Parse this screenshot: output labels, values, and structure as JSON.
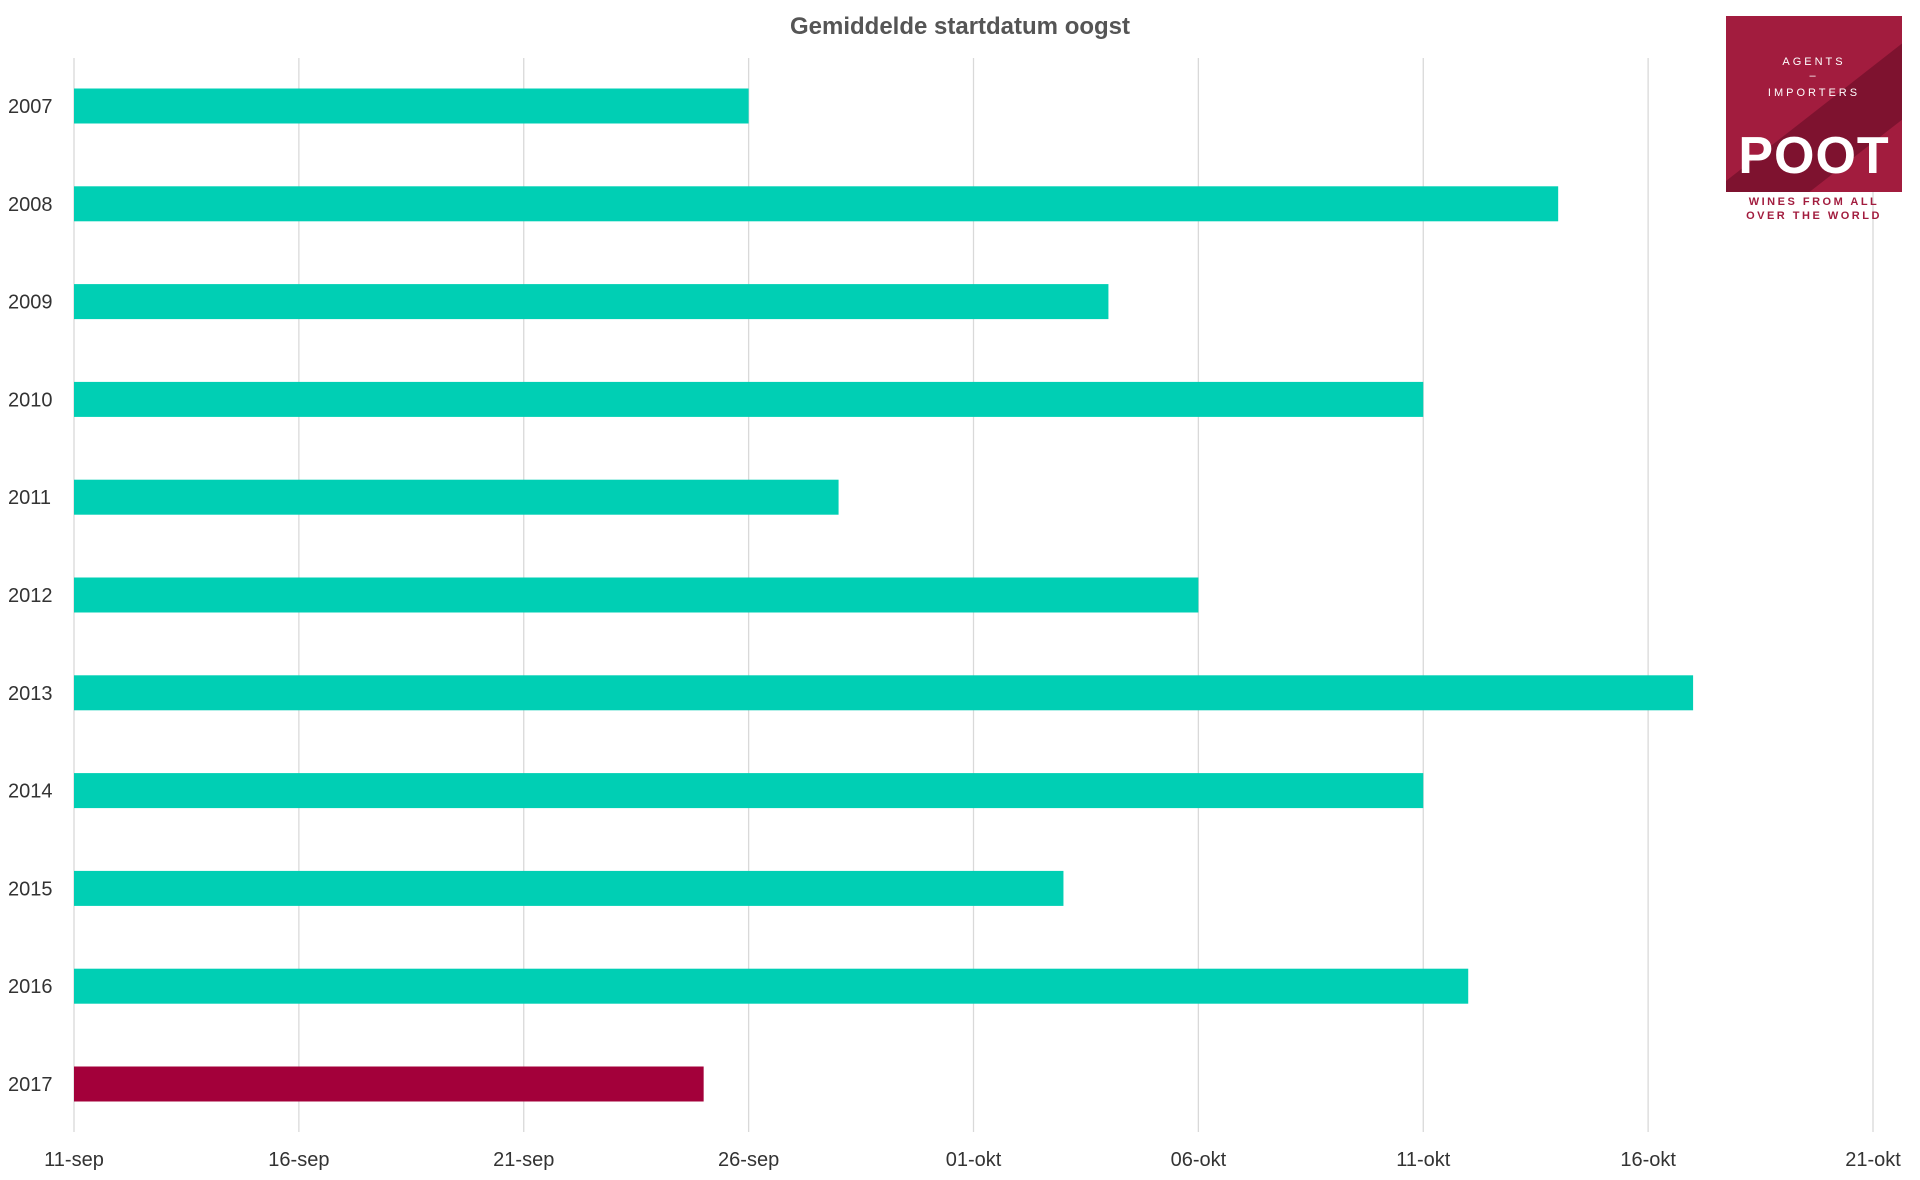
{
  "chart_data": {
    "type": "bar",
    "orientation": "horizontal",
    "title": "Gemiddelde startdatum oogst",
    "xlabel": "",
    "ylabel": "",
    "categories": [
      "2007",
      "2008",
      "2009",
      "2010",
      "2011",
      "2012",
      "2013",
      "2014",
      "2015",
      "2016",
      "2017"
    ],
    "values": [
      "26-sep",
      "14-okt",
      "04-okt",
      "11-okt",
      "28-sep",
      "06-okt",
      "17-okt",
      "11-okt",
      "03-okt",
      "12-okt",
      "25-sep"
    ],
    "x_ticks": [
      "11-sep",
      "16-sep",
      "21-sep",
      "26-sep",
      "01-okt",
      "06-okt",
      "11-okt",
      "16-okt",
      "21-okt"
    ],
    "xlim": [
      "11-sep",
      "21-okt"
    ],
    "grid": true,
    "legend": "none",
    "colors": {
      "default": "#00cfb4",
      "highlight": "#a3003a",
      "highlight_category": "2017"
    }
  },
  "logo": {
    "line1": "AGENTS",
    "line2": "–",
    "line3": "IMPORTERS",
    "brand": "POOT",
    "tagline1": "WINES FROM ALL",
    "tagline2": "OVER THE WORLD",
    "color": "#a21c3e"
  }
}
